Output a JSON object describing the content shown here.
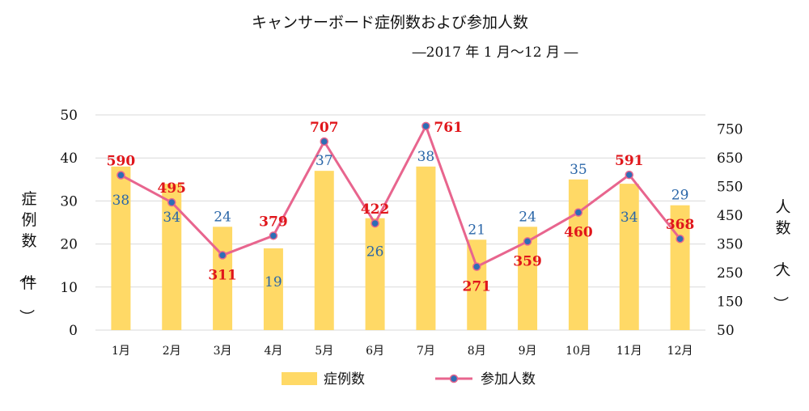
{
  "chart_data": {
    "type": "bar",
    "title": "キャンサーボード症例数および参加人数",
    "subtitle": "―2017 年 1 月～12 月 ―",
    "categories": [
      "1月",
      "2月",
      "3月",
      "4月",
      "5月",
      "6月",
      "7月",
      "8月",
      "9月",
      "10月",
      "11月",
      "12月"
    ],
    "series": [
      {
        "name": "症例数",
        "type": "bar",
        "axis": "left",
        "values": [
          38,
          34,
          24,
          19,
          37,
          26,
          38,
          21,
          24,
          35,
          34,
          29
        ]
      },
      {
        "name": "参加人数",
        "type": "line",
        "axis": "right",
        "values": [
          590,
          495,
          311,
          379,
          707,
          422,
          761,
          271,
          359,
          460,
          591,
          368
        ]
      }
    ],
    "ylabel": "症例数（件）",
    "ylabel_right": "人数（人）",
    "ylim": [
      0,
      50
    ],
    "ylim_right": [
      50,
      800
    ],
    "yticks": [
      0,
      10,
      20,
      30,
      40,
      50
    ],
    "yticks_right": [
      50,
      150,
      250,
      350,
      450,
      550,
      650,
      750
    ],
    "grid": true,
    "legend": "bottom",
    "colors": {
      "bar": "#ffd966",
      "line": "#e8658e",
      "marker": "#2e6eb5",
      "bar_label": "#2a66a8",
      "line_label": "#e0161b",
      "grid": "#d9d9d9"
    }
  }
}
